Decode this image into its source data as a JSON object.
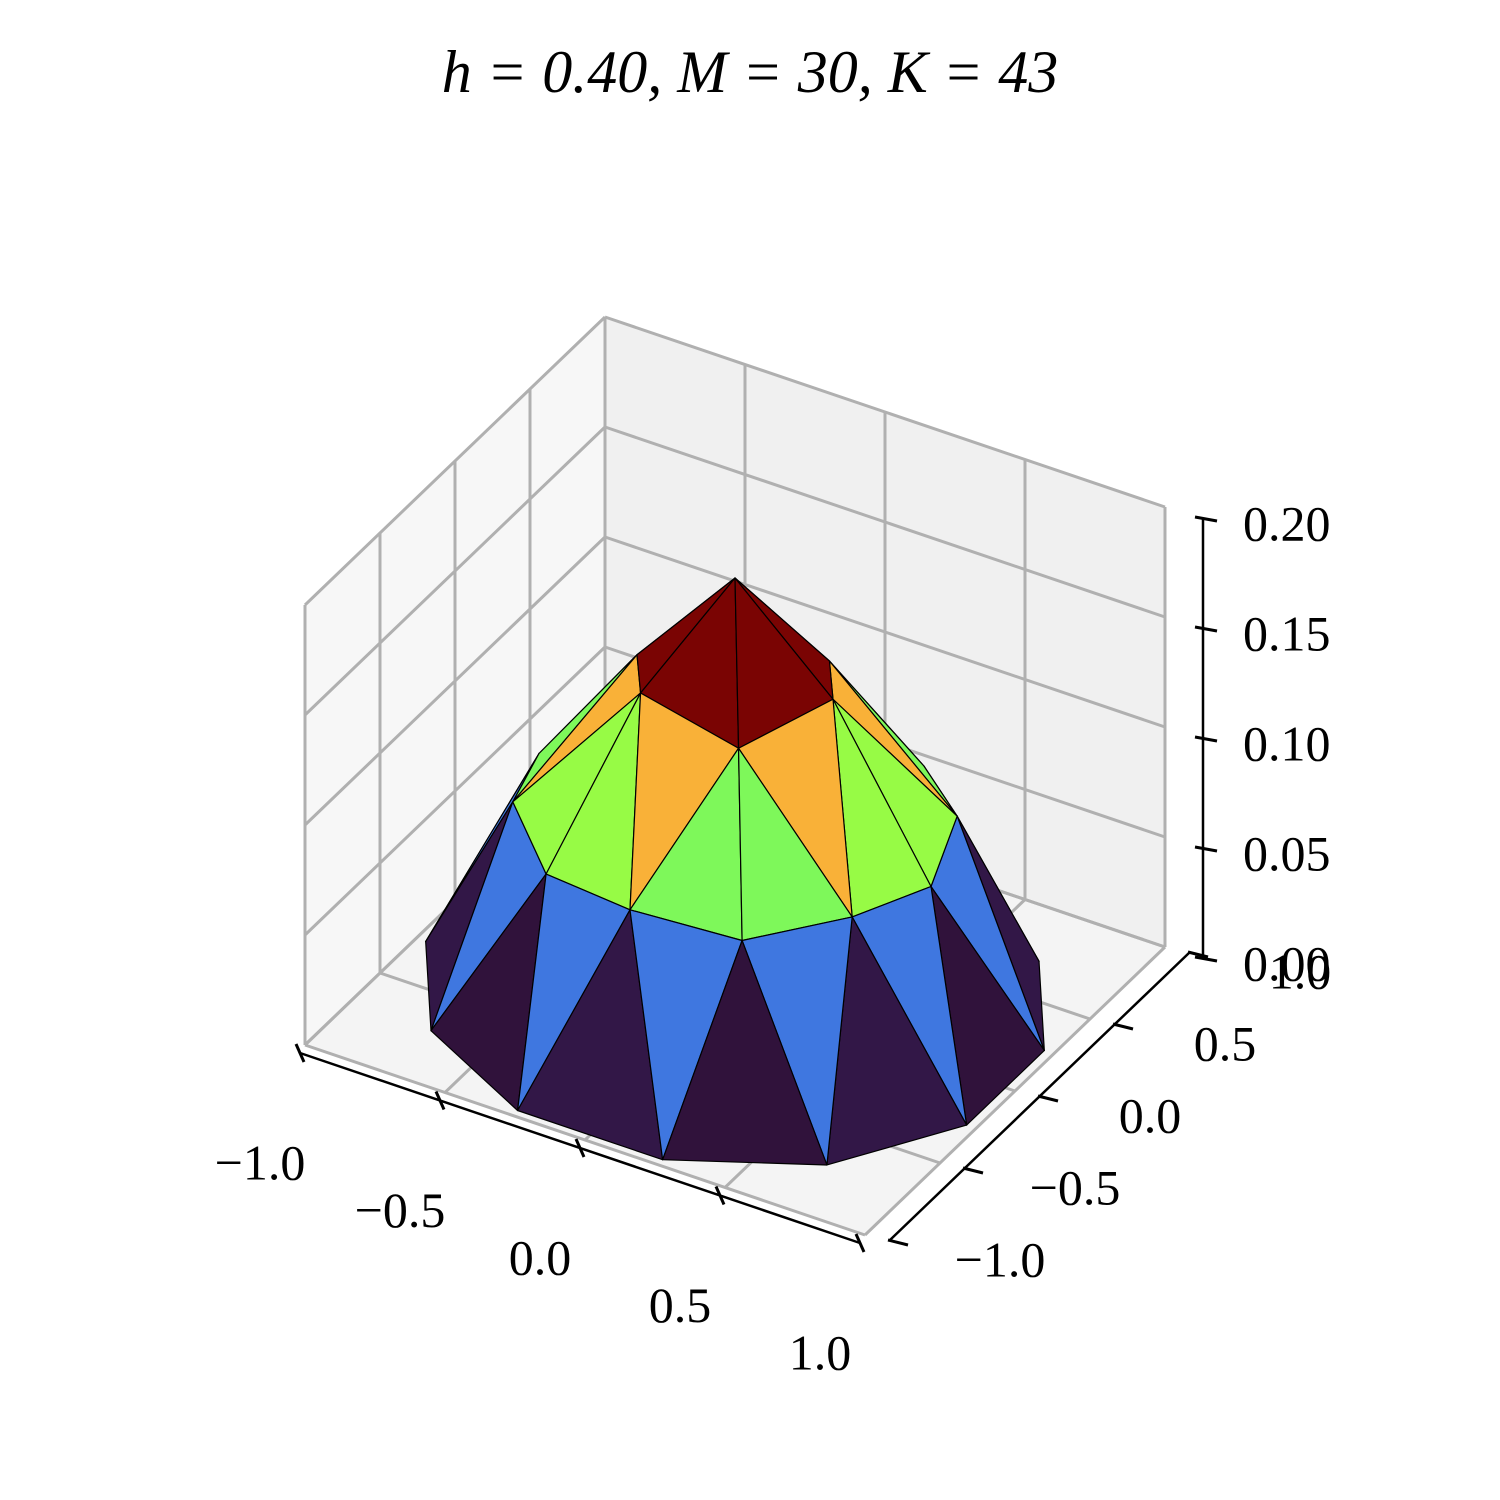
{
  "chart_data": {
    "type": "trisurf",
    "title": "h = 0.40, M = 30, K = 43",
    "xlim": [
      -1,
      1
    ],
    "ylim": [
      -1,
      1
    ],
    "zlim": [
      0,
      0.2
    ],
    "xticks": [
      {
        "value": -1,
        "label": "−1.0"
      },
      {
        "value": -0.5,
        "label": "−0.5"
      },
      {
        "value": 0,
        "label": "0.0"
      },
      {
        "value": 0.5,
        "label": "0.5"
      },
      {
        "value": 1,
        "label": "1.0"
      }
    ],
    "yticks": [
      {
        "value": -1,
        "label": "−1.0"
      },
      {
        "value": -0.5,
        "label": "−0.5"
      },
      {
        "value": 0,
        "label": "0.0"
      },
      {
        "value": 0.5,
        "label": "0.5"
      },
      {
        "value": 1,
        "label": "1.0"
      }
    ],
    "zticks": [
      {
        "value": 0,
        "label": "0.00"
      },
      {
        "value": 0.05,
        "label": "0.05"
      },
      {
        "value": 0.1,
        "label": "0.10"
      },
      {
        "value": 0.15,
        "label": "0.15"
      },
      {
        "value": 0.2,
        "label": "0.20"
      }
    ],
    "grid": true,
    "cmap": "turbo",
    "nodes": [
      [
        0,
        0,
        0.19
      ],
      [
        0.35,
        0,
        0.15
      ],
      [
        0.175,
        0.303,
        0.14
      ],
      [
        -0.175,
        0.303,
        0.15
      ],
      [
        -0.35,
        0,
        0.14
      ],
      [
        -0.175,
        -0.303,
        0.15
      ],
      [
        0.175,
        -0.303,
        0.14
      ],
      [
        0.7,
        0,
        0.08
      ],
      [
        0.606,
        0.35,
        0.085
      ],
      [
        0.35,
        0.606,
        0.08
      ],
      [
        0,
        0.7,
        0.085
      ],
      [
        -0.35,
        0.606,
        0.08
      ],
      [
        -0.606,
        0.35,
        0.085
      ],
      [
        -0.7,
        0,
        0.08
      ],
      [
        -0.606,
        -0.35,
        0.085
      ],
      [
        -0.35,
        -0.606,
        0.08
      ],
      [
        0,
        -0.7,
        0.085
      ],
      [
        0.35,
        -0.606,
        0.08
      ],
      [
        0.606,
        -0.35,
        0.085
      ],
      [
        0.966,
        0.259,
        0
      ],
      [
        0.707,
        0.707,
        0
      ],
      [
        0.259,
        0.966,
        0
      ],
      [
        -0.259,
        0.966,
        0
      ],
      [
        -0.707,
        0.707,
        0
      ],
      [
        -0.966,
        0.259,
        0
      ],
      [
        -0.966,
        -0.259,
        0
      ],
      [
        -0.707,
        -0.707,
        0
      ],
      [
        -0.259,
        -0.966,
        0
      ],
      [
        0.259,
        -0.966,
        0
      ],
      [
        0.707,
        -0.707,
        0
      ],
      [
        0.966,
        -0.259,
        0
      ]
    ]
  }
}
